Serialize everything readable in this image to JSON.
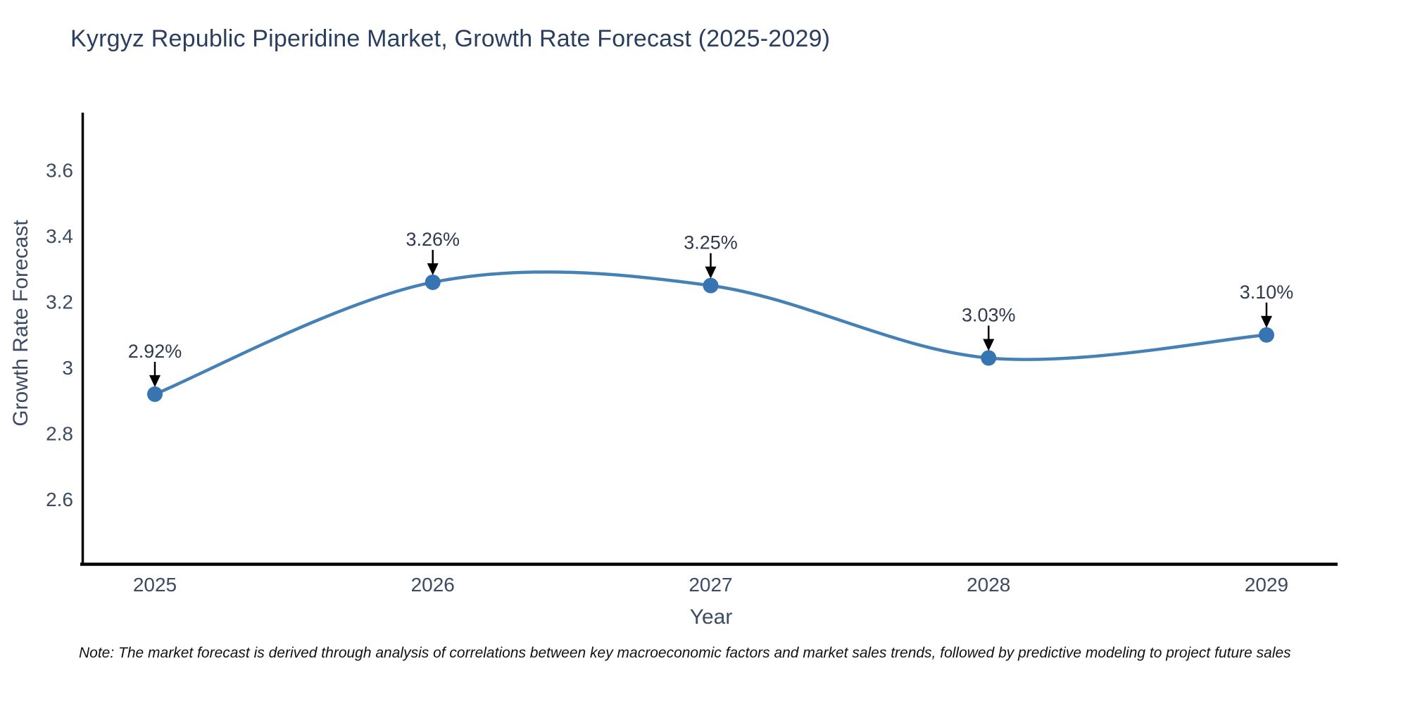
{
  "title": "Kyrgyz Republic Piperidine Market, Growth Rate Forecast (2025-2029)",
  "note": "Note: The market forecast is derived through analysis of correlations between key macroeconomic factors and market sales trends, followed by predictive modeling to project future sales",
  "colors": {
    "title": "#2a3f5f",
    "axis_text": "#3d4a63",
    "tick_text": "#3d4a63",
    "line": "#4581b5",
    "marker": "#3675b2",
    "annotation_text": "#2f3a50",
    "arrow": "#000000",
    "spine": "#000000"
  },
  "chart_data": {
    "type": "line",
    "title": "Kyrgyz Republic Piperidine Market, Growth Rate Forecast (2025-2029)",
    "x": [
      "2025",
      "2026",
      "2027",
      "2028",
      "2029"
    ],
    "values": [
      2.92,
      3.26,
      3.25,
      3.03,
      3.1
    ],
    "point_labels": [
      "2.92%",
      "3.26%",
      "3.25%",
      "3.03%",
      "3.10%"
    ],
    "xlabel": "Year",
    "ylabel": "Growth Rate Forecast",
    "yticks": [
      2.6,
      2.8,
      3,
      3.2,
      3.4,
      3.6
    ],
    "ytick_labels": [
      "2.6",
      "2.8",
      "3",
      "3.2",
      "3.4",
      "3.6"
    ],
    "ylim": [
      2.45,
      3.75
    ],
    "line_shape": "spline",
    "grid": false,
    "legend": "none",
    "annotations": "black down-arrows from value labels to each data point"
  }
}
